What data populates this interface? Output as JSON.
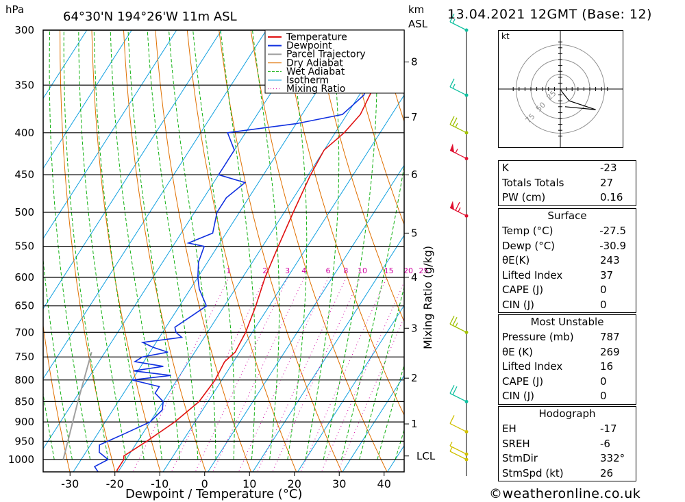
{
  "chart_data": {
    "type": "line",
    "title": "64°30'N  194°26'W  11m  ASL",
    "timestamp": "13.04.2021  12GMT  (Base: 12)",
    "pressure_unit": "hPa",
    "height_unit": "km",
    "height_unit_2": "ASL",
    "xlabel": "Dewpoint / Temperature (°C)",
    "mixing_ratio_label": "Mixing Ratio (g/kg)",
    "pressure_levels": [
      300,
      350,
      400,
      450,
      500,
      550,
      600,
      650,
      700,
      750,
      800,
      850,
      900,
      950,
      1000
    ],
    "x_ticks": [
      -30,
      -20,
      -10,
      0,
      10,
      20,
      30,
      40
    ],
    "height_ticks": [
      {
        "label": "8",
        "p": 328
      },
      {
        "label": "7",
        "p": 383
      },
      {
        "label": "6",
        "p": 450
      },
      {
        "label": "5",
        "p": 530
      },
      {
        "label": "4",
        "p": 600
      },
      {
        "label": "3",
        "p": 692
      },
      {
        "label": "2",
        "p": 796
      },
      {
        "label": "1",
        "p": 905
      },
      {
        "label": "LCL",
        "p": 990
      }
    ],
    "mixing_ratio_values": [
      "1",
      "2",
      "3",
      "4",
      "6",
      "8",
      "10",
      "15",
      "20",
      "25"
    ],
    "legend": [
      "Temperature",
      "Dewpoint",
      "Parcel Trajectory",
      "Dry Adiabat",
      "Wet Adiabat",
      "Isotherm",
      "Mixing Ratio"
    ],
    "colors": {
      "temperature": "#e01010",
      "dewpoint": "#1030e0",
      "parcel": "#a0a0a0",
      "dry_adiabat": "#e07000",
      "wet_adiabat": "#10b010",
      "isotherm": "#10a0e0",
      "mixing_ratio": "#d000a0",
      "hodo_line": "#000000"
    },
    "series": [
      {
        "name": "Temperature",
        "points": [
          [
            1040,
            -20
          ],
          [
            1030,
            -20.5
          ],
          [
            1000,
            -20.5
          ],
          [
            990,
            -21
          ],
          [
            950,
            -18
          ],
          [
            900,
            -14.5
          ],
          [
            850,
            -12
          ],
          [
            800,
            -11.5
          ],
          [
            760,
            -12
          ],
          [
            740,
            -11
          ],
          [
            700,
            -11.5
          ],
          [
            650,
            -13
          ],
          [
            600,
            -15
          ],
          [
            550,
            -16.5
          ],
          [
            500,
            -18
          ],
          [
            450,
            -19.5
          ],
          [
            420,
            -20
          ],
          [
            400,
            -18
          ],
          [
            380,
            -17
          ],
          [
            350,
            -18
          ],
          [
            320,
            -20
          ],
          [
            300,
            -21
          ]
        ]
      },
      {
        "name": "Dewpoint",
        "points": [
          [
            1040,
            -24
          ],
          [
            1020,
            -26
          ],
          [
            1000,
            -24
          ],
          [
            980,
            -27
          ],
          [
            960,
            -28
          ],
          [
            930,
            -24
          ],
          [
            900,
            -20
          ],
          [
            870,
            -19
          ],
          [
            850,
            -20
          ],
          [
            830,
            -23
          ],
          [
            815,
            -23
          ],
          [
            800,
            -30
          ],
          [
            790,
            -22
          ],
          [
            780,
            -31
          ],
          [
            770,
            -25
          ],
          [
            760,
            -32
          ],
          [
            750,
            -31
          ],
          [
            740,
            -26
          ],
          [
            730,
            -30
          ],
          [
            720,
            -33
          ],
          [
            710,
            -25
          ],
          [
            700,
            -27
          ],
          [
            690,
            -28
          ],
          [
            670,
            -26
          ],
          [
            650,
            -24
          ],
          [
            620,
            -28
          ],
          [
            600,
            -30
          ],
          [
            575,
            -32
          ],
          [
            550,
            -33
          ],
          [
            545,
            -37
          ],
          [
            530,
            -33
          ],
          [
            500,
            -35
          ],
          [
            480,
            -35
          ],
          [
            460,
            -33
          ],
          [
            450,
            -40
          ],
          [
            440,
            -40
          ],
          [
            420,
            -40
          ],
          [
            400,
            -44
          ],
          [
            390,
            -30
          ],
          [
            380,
            -21
          ],
          [
            370,
            -20
          ],
          [
            360,
            -19
          ],
          [
            340,
            -20
          ],
          [
            320,
            -20
          ],
          [
            310,
            -19
          ],
          [
            300,
            -18
          ]
        ]
      },
      {
        "name": "Parcel Trajectory",
        "points": [
          [
            1000,
            -34
          ],
          [
            850,
            -39
          ],
          [
            740,
            -43
          ]
        ]
      }
    ],
    "wind_barbs": [
      {
        "p": 300,
        "kt": 15
      },
      {
        "p": 360,
        "kt": 15
      },
      {
        "p": 400,
        "kt": 25
      },
      {
        "p": 430,
        "kt": 55
      },
      {
        "p": 505,
        "kt": 65
      },
      {
        "p": 700,
        "kt": 25
      },
      {
        "p": 850,
        "kt": 20
      },
      {
        "p": 925,
        "kt": 10
      },
      {
        "p": 985,
        "kt": 5
      },
      {
        "p": 1000,
        "kt": 5
      }
    ],
    "hodograph": {
      "unit": "kt",
      "rings": [
        {
          "label": "25",
          "r": 25
        },
        {
          "label": "50",
          "r": 50
        },
        {
          "label": "75",
          "r": 75
        }
      ],
      "wind_points": [
        [
          0,
          0
        ],
        [
          3,
          -5
        ],
        [
          15,
          -20
        ],
        [
          60,
          -35
        ],
        [
          8,
          -30
        ]
      ]
    }
  },
  "indices": {
    "k_label": "K",
    "k_value": "-23",
    "tt_label": "Totals Totals",
    "tt_value": "27",
    "pw_label": "PW (cm)",
    "pw_value": "0.16"
  },
  "surface": {
    "title": "Surface",
    "rows": [
      {
        "label": "Temp (°C)",
        "value": "-27.5"
      },
      {
        "label": "Dewp (°C)",
        "value": "-30.9"
      },
      {
        "label": "θE(K)",
        "value": "243"
      },
      {
        "label": "Lifted Index",
        "value": "37"
      },
      {
        "label": "CAPE (J)",
        "value": "0"
      },
      {
        "label": "CIN (J)",
        "value": "0"
      }
    ]
  },
  "most_unstable": {
    "title": "Most Unstable",
    "rows": [
      {
        "label": "Pressure (mb)",
        "value": "787"
      },
      {
        "label": "θE (K)",
        "value": "269"
      },
      {
        "label": "Lifted Index",
        "value": "16"
      },
      {
        "label": "CAPE (J)",
        "value": "0"
      },
      {
        "label": "CIN (J)",
        "value": "0"
      }
    ]
  },
  "hodograph_table": {
    "title": "Hodograph",
    "rows": [
      {
        "label": "EH",
        "value": "-17"
      },
      {
        "label": "SREH",
        "value": "-6"
      },
      {
        "label": "StmDir",
        "value": "332°"
      },
      {
        "label": "StmSpd (kt)",
        "value": "26"
      }
    ]
  },
  "footer": "©weatheronline.co.uk"
}
